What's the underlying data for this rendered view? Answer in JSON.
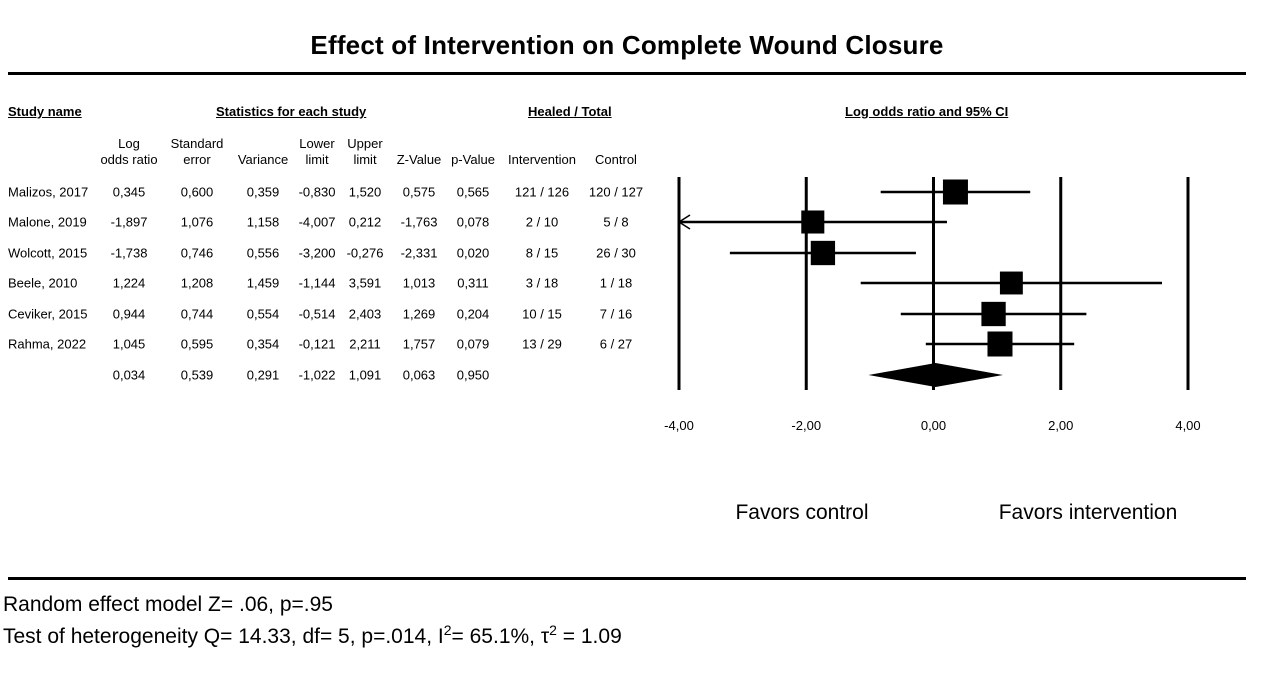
{
  "title": "Effect of Intervention on Complete Wound Closure",
  "headers": {
    "study_name": "Study name",
    "stats": "Statistics for each study",
    "healed": "Healed / Total",
    "plot": "Log odds ratio and 95% CI"
  },
  "columns": [
    {
      "line1": "Log",
      "line2": "odds ratio"
    },
    {
      "line1": "Standard",
      "line2": "error"
    },
    {
      "line1": "",
      "line2": "Variance"
    },
    {
      "line1": "Lower",
      "line2": "limit"
    },
    {
      "line1": "Upper",
      "line2": "limit"
    },
    {
      "line1": "",
      "line2": "Z-Value"
    },
    {
      "line1": "",
      "line2": "p-Value"
    },
    {
      "line1": "",
      "line2": "Intervention"
    },
    {
      "line1": "",
      "line2": "Control"
    }
  ],
  "rows": [
    {
      "study": "Malizos, 2017",
      "lor": "0,345",
      "se": "0,600",
      "var": "0,359",
      "lower": "-0,830",
      "upper": "1,520",
      "z": "0,575",
      "p": "0,565",
      "intervention": "121 / 126",
      "control": "120 / 127"
    },
    {
      "study": "Malone, 2019",
      "lor": "-1,897",
      "se": "1,076",
      "var": "1,158",
      "lower": "-4,007",
      "upper": "0,212",
      "z": "-1,763",
      "p": "0,078",
      "intervention": "2 / 10",
      "control": "5 / 8"
    },
    {
      "study": "Wolcott, 2015",
      "lor": "-1,738",
      "se": "0,746",
      "var": "0,556",
      "lower": "-3,200",
      "upper": "-0,276",
      "z": "-2,331",
      "p": "0,020",
      "intervention": "8 / 15",
      "control": "26 / 30"
    },
    {
      "study": "Beele, 2010",
      "lor": "1,224",
      "se": "1,208",
      "var": "1,459",
      "lower": "-1,144",
      "upper": "3,591",
      "z": "1,013",
      "p": "0,311",
      "intervention": "3 / 18",
      "control": "1 / 18"
    },
    {
      "study": "Ceviker, 2015",
      "lor": "0,944",
      "se": "0,744",
      "var": "0,554",
      "lower": "-0,514",
      "upper": "2,403",
      "z": "1,269",
      "p": "0,204",
      "intervention": "10 / 15",
      "control": "7 / 16"
    },
    {
      "study": "Rahma, 2022",
      "lor": "1,045",
      "se": "0,595",
      "var": "0,354",
      "lower": "-0,121",
      "upper": "2,211",
      "z": "1,757",
      "p": "0,079",
      "intervention": "13 / 29",
      "control": "6 / 27"
    }
  ],
  "summary": {
    "lor": "0,034",
    "se": "0,539",
    "var": "0,291",
    "lower": "-1,022",
    "upper": "1,091",
    "z": "0,063",
    "p": "0,950"
  },
  "chart_data": {
    "type": "scatter",
    "subtype": "forest",
    "title": "Log odds ratio and 95% CI",
    "xlim": [
      -4,
      4
    ],
    "xticks": [
      "-4,00",
      "-2,00",
      "0,00",
      "2,00",
      "4,00"
    ],
    "xtick_values": [
      -4,
      -2,
      0,
      2,
      4
    ],
    "studies": [
      {
        "estimate": 0.345,
        "lower": -0.83,
        "upper": 1.52,
        "weight": 1.0
      },
      {
        "estimate": -1.897,
        "lower": -4.007,
        "upper": 0.212,
        "weight": 0.72
      },
      {
        "estimate": -1.738,
        "lower": -3.2,
        "upper": -0.276,
        "weight": 0.9
      },
      {
        "estimate": 1.224,
        "lower": -1.144,
        "upper": 3.591,
        "weight": 0.7
      },
      {
        "estimate": 0.944,
        "lower": -0.514,
        "upper": 2.403,
        "weight": 0.9
      },
      {
        "estimate": 1.045,
        "lower": -0.121,
        "upper": 2.211,
        "weight": 1.0
      }
    ],
    "pooled": {
      "estimate": 0.034,
      "lower": -1.022,
      "upper": 1.091
    },
    "left_label": "Favors control",
    "right_label": "Favors intervention"
  },
  "footer": {
    "line1": "Random effect model Z= .06, p=.95",
    "line2_pre": "Test of heterogeneity Q= 14.33, df= 5, p=.014, I",
    "i2_sup": "2",
    "line2_mid": "= 65.1%, τ",
    "tau_sup": "2",
    "line2_post": " = 1.09"
  }
}
